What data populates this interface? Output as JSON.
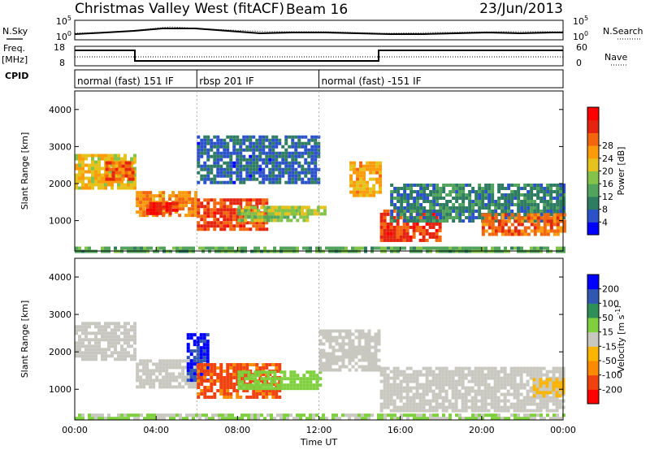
{
  "header": {
    "station": "Christmas Valley West (fitACF)",
    "beam": "Beam 16",
    "date": "23/Jun/2013"
  },
  "left_labels": {
    "nsky": "N.Sky",
    "freq_line1": "Freq.",
    "freq_line2": "[MHz]",
    "cpid": "CPID"
  },
  "right_labels": {
    "nsearch": "N.Search",
    "nave": "Nave"
  },
  "noise_panel": {
    "left_ticks": [
      "10^5",
      "10^0"
    ],
    "right_ticks": [
      "10^5",
      "10^0"
    ]
  },
  "freq_panel": {
    "left_ticks": [
      "18",
      "8"
    ],
    "right_ticks": [
      "60",
      "0"
    ]
  },
  "cpid_modes": [
    {
      "label": "normal (fast) 151 IF",
      "start": 0.0,
      "end": 6.0
    },
    {
      "label": "rbsp 201 IF",
      "start": 6.0,
      "end": 12.0
    },
    {
      "label": "normal (fast) -151 IF",
      "start": 12.0,
      "end": 24.0
    }
  ],
  "chart_data": [
    {
      "type": "heatmap",
      "title": "",
      "xlabel": "Time UT",
      "ylabel": "Slant Range [km]",
      "xlim": [
        0,
        24
      ],
      "ylim": [
        180,
        4500
      ],
      "x_tick_labels": [
        "00:00",
        "04:00",
        "08:00",
        "12:00",
        "16:00",
        "20:00",
        "00:00"
      ],
      "y_ticks": [
        1000,
        2000,
        3000,
        4000
      ],
      "colorbar": {
        "label": "Power [dB]",
        "range": [
          0,
          32
        ],
        "ticks": [
          "4",
          "8",
          "12",
          "16",
          "20",
          "24",
          "28"
        ],
        "colors": [
          "#0000ff",
          "#2b52c8",
          "#2e7d62",
          "#52a35c",
          "#84c34a",
          "#e6c21e",
          "#fb9a0a",
          "#f4660e",
          "#e4240e",
          "#ff0000"
        ]
      },
      "regions": [
        {
          "t0": 0.0,
          "t1": 2.9,
          "r0": 1900,
          "r1": 2800,
          "value": 18
        },
        {
          "t0": 1.5,
          "t1": 2.8,
          "r0": 2100,
          "r1": 2600,
          "value": 24
        },
        {
          "t0": 3.0,
          "t1": 6.0,
          "r0": 1100,
          "r1": 1800,
          "value": 22
        },
        {
          "t0": 3.5,
          "t1": 5.0,
          "r0": 1200,
          "r1": 1500,
          "value": 28
        },
        {
          "t0": 6.0,
          "t1": 9.5,
          "r0": 800,
          "r1": 1600,
          "value": 26
        },
        {
          "t0": 8.0,
          "t1": 11.5,
          "r0": 1000,
          "r1": 1400,
          "value": 14
        },
        {
          "t0": 9.5,
          "t1": 12.5,
          "r0": 1200,
          "r1": 1400,
          "value": 16
        },
        {
          "t0": 6.0,
          "t1": 12.0,
          "r0": 2000,
          "r1": 3300,
          "value": 6
        },
        {
          "t0": 13.5,
          "t1": 15.0,
          "r0": 1700,
          "r1": 2600,
          "value": 20
        },
        {
          "t0": 15.0,
          "t1": 18.0,
          "r0": 500,
          "r1": 1300,
          "value": 26
        },
        {
          "t0": 15.5,
          "t1": 24.0,
          "r0": 1000,
          "r1": 2000,
          "value": 8
        },
        {
          "t0": 20.0,
          "t1": 24.0,
          "r0": 600,
          "r1": 1200,
          "value": 24
        },
        {
          "t0": 0.0,
          "t1": 24.0,
          "r0": 180,
          "r1": 300,
          "value": 12
        }
      ]
    },
    {
      "type": "heatmap",
      "title": "",
      "xlabel": "Time UT",
      "ylabel": "Slant Range [km]",
      "xlim": [
        0,
        24
      ],
      "ylim": [
        180,
        4500
      ],
      "x_tick_labels": [
        "00:00",
        "04:00",
        "08:00",
        "12:00",
        "16:00",
        "20:00",
        "00:00"
      ],
      "y_ticks": [
        1000,
        2000,
        3000,
        4000
      ],
      "colorbar": {
        "label": "Velocity [m s^-1]",
        "range": [
          -250,
          250
        ],
        "ticks": [
          "-200",
          "-100",
          "-50",
          "-15",
          "15",
          "50",
          "100",
          "200"
        ],
        "colors": [
          "#ff0000",
          "#f0420e",
          "#fb8a00",
          "#fbb400",
          "#c8c8c0",
          "#7fd03e",
          "#2e8f58",
          "#3058b0",
          "#0000ff"
        ]
      },
      "regions": [
        {
          "t0": 0.0,
          "t1": 3.0,
          "r0": 1800,
          "r1": 2800,
          "value": 0
        },
        {
          "t0": 3.0,
          "t1": 6.0,
          "r0": 1100,
          "r1": 1800,
          "value": 0
        },
        {
          "t0": 5.5,
          "t1": 6.5,
          "r0": 1200,
          "r1": 2500,
          "value": 200
        },
        {
          "t0": 6.0,
          "t1": 10.0,
          "r0": 800,
          "r1": 1700,
          "value": -150
        },
        {
          "t0": 8.0,
          "t1": 12.0,
          "r0": 1000,
          "r1": 1500,
          "value": 60
        },
        {
          "t0": 12.0,
          "t1": 15.0,
          "r0": 1500,
          "r1": 2600,
          "value": 0
        },
        {
          "t0": 15.0,
          "t1": 24.0,
          "r0": 400,
          "r1": 1600,
          "value": 0
        },
        {
          "t0": 22.5,
          "t1": 24.0,
          "r0": 800,
          "r1": 1300,
          "value": -40
        },
        {
          "t0": 0.0,
          "t1": 24.0,
          "r0": 180,
          "r1": 350,
          "value": 30
        }
      ]
    }
  ]
}
